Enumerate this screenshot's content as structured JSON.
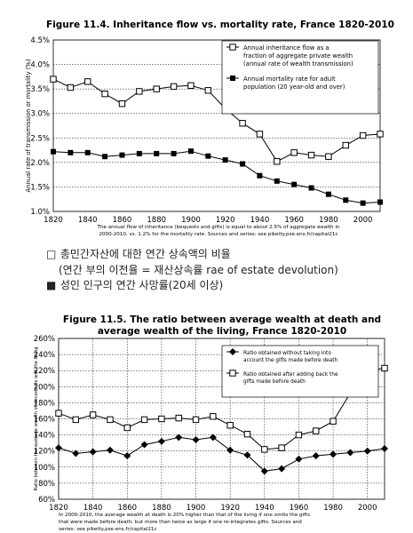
{
  "chart_data": [
    {
      "type": "line",
      "title": "Figure 11.4. Inheritance flow vs. mortality rate, France 1820-2010",
      "ylabel": "Annual rate of transmission or mortality (%)",
      "xlabel": "",
      "x": [
        1820,
        1830,
        1840,
        1850,
        1860,
        1870,
        1880,
        1890,
        1900,
        1910,
        1920,
        1930,
        1940,
        1950,
        1960,
        1970,
        1980,
        1990,
        2000,
        2010
      ],
      "xlim": [
        1820,
        2010
      ],
      "ylim": [
        1.0,
        4.5
      ],
      "x_ticks": [
        "1820",
        "1840",
        "1860",
        "1880",
        "1900",
        "1920",
        "1940",
        "1960",
        "1980",
        "2000"
      ],
      "y_ticks": [
        "1.0%",
        "1.5%",
        "2.0%",
        "2.5%",
        "3.0%",
        "3.5%",
        "4.0%",
        "4.5%"
      ],
      "grid": "horizontal",
      "legend_position": "top-right",
      "series": [
        {
          "name": "Annual inheritance flow as a fraction of aggregate private wealth (annual rate of wealth transmission)",
          "marker": "square-open",
          "values": [
            3.7,
            3.53,
            3.65,
            3.4,
            3.2,
            3.45,
            3.5,
            3.55,
            3.57,
            3.47,
            3.1,
            2.8,
            2.58,
            2.02,
            2.2,
            2.15,
            2.12,
            2.35,
            2.55,
            2.58
          ]
        },
        {
          "name": "Annual mortality rate for adult population (20 year-old and over)",
          "marker": "square-filled",
          "values": [
            2.22,
            2.2,
            2.2,
            2.12,
            2.15,
            2.18,
            2.18,
            2.18,
            2.23,
            2.13,
            2.05,
            1.97,
            1.73,
            1.62,
            1.55,
            1.48,
            1.35,
            1.23,
            1.17,
            1.19
          ]
        }
      ],
      "caption": "The annual flow of inheritance (bequests and gifts) is equal to about 2.5% of aggregate wealth in 2000-2010, vs. 1.2% for the mortality rate. Sources and series: see piketty.pse.ens.fr/capital21c"
    },
    {
      "type": "line",
      "title": "Figure 11.5. The ratio between average wealth at death and average wealth of the living, France 1820-2010",
      "ylabel": "Ratio between the average wealth of decedents and the living",
      "xlabel": "",
      "x": [
        1820,
        1830,
        1840,
        1850,
        1860,
        1870,
        1880,
        1890,
        1900,
        1910,
        1920,
        1930,
        1940,
        1950,
        1960,
        1970,
        1980,
        1990,
        2000,
        2010
      ],
      "xlim": [
        1820,
        2010
      ],
      "ylim": [
        60,
        260
      ],
      "x_ticks": [
        "1820",
        "1840",
        "1860",
        "1880",
        "1900",
        "1920",
        "1940",
        "1960",
        "1980",
        "2000"
      ],
      "y_ticks": [
        "60%",
        "80%",
        "100%",
        "120%",
        "140%",
        "160%",
        "180%",
        "200%",
        "220%",
        "240%",
        "260%"
      ],
      "grid": "both",
      "legend_position": "top-right",
      "series": [
        {
          "name": "Ratio obtained without taking into account the gifts made before death",
          "marker": "diamond-filled",
          "values": [
            124,
            117,
            119,
            121,
            114,
            128,
            132,
            137,
            134,
            137,
            121,
            115,
            95,
            98,
            110,
            114,
            116,
            118,
            120,
            123
          ]
        },
        {
          "name": "Ratio obtained after adding back the gifts made before death",
          "marker": "square-open",
          "values": [
            167,
            159,
            165,
            159,
            149,
            159,
            160,
            161,
            159,
            163,
            152,
            141,
            122,
            124,
            140,
            145,
            157,
            192,
            220,
            223
          ]
        }
      ],
      "caption": "In 2000-2010, the average wealth at death is 20% higher than that of the living if one omits the gifts that were made before death; but more than twice as large if one re-integrates gifts. Sources and series: see piketty.pse.ens.fr/capital21c"
    }
  ],
  "notes": {
    "line1_symbol": "□",
    "line1_text": "총민간자산에 대한 연간 상속액의 비율",
    "line2_text": "(연간 부의 이전율 = 재산상속률 rae of estate devolution)",
    "line3_symbol": "■",
    "line3_text": "성인 인구의 연간 사망률(20세 이상)"
  }
}
